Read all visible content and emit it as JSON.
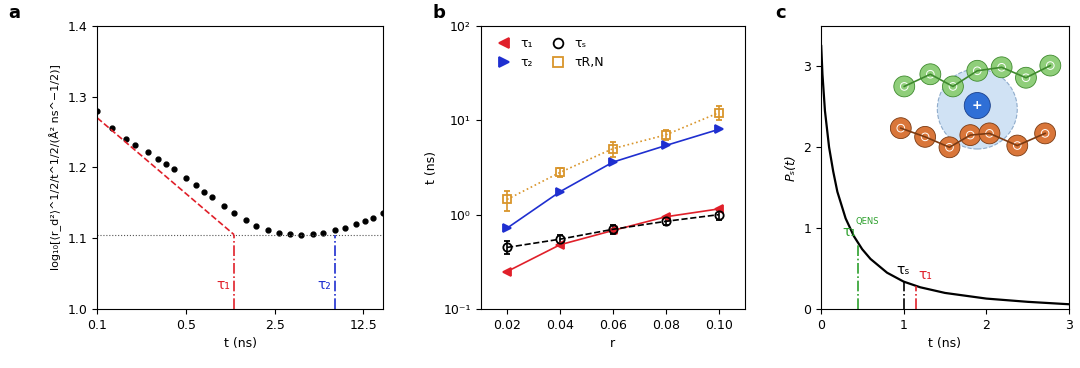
{
  "chart_data": [
    {
      "panel": "a",
      "type": "scatter",
      "x_label": "t (ns)",
      "y_label": "log₁₀[⟨r_d²⟩^1/2/t^1/2/(Å² ns^−1/2)]",
      "log": "x",
      "xlim": [
        0.1,
        18
      ],
      "xticks": [
        0.1,
        0.5,
        2.5,
        12.5
      ],
      "ylim": [
        1.0,
        1.4
      ],
      "yticks": [
        1.0,
        1.1,
        1.2,
        1.3,
        1.4
      ],
      "x": [
        0.1,
        0.13,
        0.17,
        0.2,
        0.25,
        0.3,
        0.35,
        0.4,
        0.5,
        0.6,
        0.7,
        0.8,
        1.0,
        1.2,
        1.5,
        1.8,
        2.2,
        2.7,
        3.3,
        4,
        5,
        6,
        7.5,
        9,
        11,
        13,
        15,
        18
      ],
      "values": [
        1.28,
        1.255,
        1.24,
        1.232,
        1.222,
        1.212,
        1.205,
        1.198,
        1.185,
        1.175,
        1.166,
        1.158,
        1.146,
        1.136,
        1.126,
        1.118,
        1.112,
        1.108,
        1.106,
        1.105,
        1.106,
        1.108,
        1.111,
        1.115,
        1.12,
        1.125,
        1.129,
        1.135
      ],
      "color": "#000000",
      "marker": "circle",
      "fit_line": {
        "x": [
          0.1,
          1.2
        ],
        "values": [
          1.27,
          1.105
        ],
        "color": "#e0202a",
        "line_style": "dashed"
      },
      "plateau": {
        "value": 1.105,
        "color": "#555555",
        "line_style": "dotted"
      },
      "markers": [
        {
          "label": "τ₁",
          "value": 1.2,
          "color": "#e0202a"
        },
        {
          "label": "τ₂",
          "value": 7.5,
          "color": "#1f2fd0"
        }
      ]
    },
    {
      "panel": "b",
      "type": "line",
      "x_label": "r",
      "y_label": "t (ns)",
      "log": "y",
      "xlim": [
        0.01,
        0.11
      ],
      "xticks": [
        0.02,
        0.04,
        0.06,
        0.08,
        {
          "value": 0.1,
          "label": "0.10"
        }
      ],
      "ylim": [
        0.1,
        100
      ],
      "yticks": [
        {
          "value": 0.1,
          "label": "10⁻¹"
        },
        {
          "value": 1,
          "label": "10⁰"
        },
        {
          "value": 10,
          "label": "10¹"
        },
        {
          "value": 100,
          "label": "10²"
        }
      ],
      "legend": "upper left",
      "x": [
        0.02,
        0.04,
        0.06,
        0.08,
        0.1
      ],
      "series": [
        {
          "name": "τ₁",
          "color": "#e0202a",
          "marker": "triangle_left",
          "line_style": "solid",
          "values": [
            0.25,
            0.48,
            0.68,
            0.95,
            1.15
          ]
        },
        {
          "name": "τ₂",
          "color": "#1f2fd0",
          "marker": "triangle_right",
          "line_style": "solid",
          "values": [
            0.72,
            1.75,
            3.6,
            5.4,
            8.0
          ]
        },
        {
          "name": "τₛ",
          "color": "#000000",
          "marker": "open_circle",
          "line_style": "dashed",
          "values": [
            0.45,
            0.55,
            0.7,
            0.85,
            1.0
          ],
          "errors": [
            0.07,
            0.06,
            0.08,
            0.08,
            0.12
          ]
        },
        {
          "name": "τR,N",
          "color": "#d9952b",
          "marker": "open_square",
          "line_style": "dotted",
          "values": [
            1.45,
            2.8,
            5.0,
            7.0,
            12.0
          ],
          "errors": [
            0.35,
            0.3,
            0.9,
            0.8,
            2.0
          ]
        }
      ]
    },
    {
      "panel": "c",
      "type": "line",
      "x_label": "t (ns)",
      "y_label": "Pₛ(t)",
      "xlim": [
        0,
        3
      ],
      "xticks": [
        0,
        1,
        2,
        3
      ],
      "ylim": [
        0,
        3.5
      ],
      "yticks": [
        0,
        1,
        2,
        3
      ],
      "x": [
        0.005,
        0.02,
        0.05,
        0.1,
        0.15,
        0.2,
        0.3,
        0.4,
        0.5,
        0.6,
        0.8,
        1.0,
        1.2,
        1.5,
        2.0,
        2.5,
        3.0
      ],
      "values": [
        3.25,
        2.9,
        2.45,
        2.0,
        1.7,
        1.45,
        1.12,
        0.9,
        0.74,
        0.62,
        0.45,
        0.34,
        0.27,
        0.2,
        0.13,
        0.09,
        0.06
      ],
      "color": "#000000",
      "ion_label": "+",
      "markers": [
        {
          "label": "τ₁",
          "superscript": "QENS",
          "value": 0.45,
          "color": "#2ca02c"
        },
        {
          "label": "τₛ",
          "value": 1.0,
          "color": "#000000"
        },
        {
          "label": "τ₁",
          "value": 1.15,
          "color": "#e0202a"
        }
      ]
    }
  ]
}
